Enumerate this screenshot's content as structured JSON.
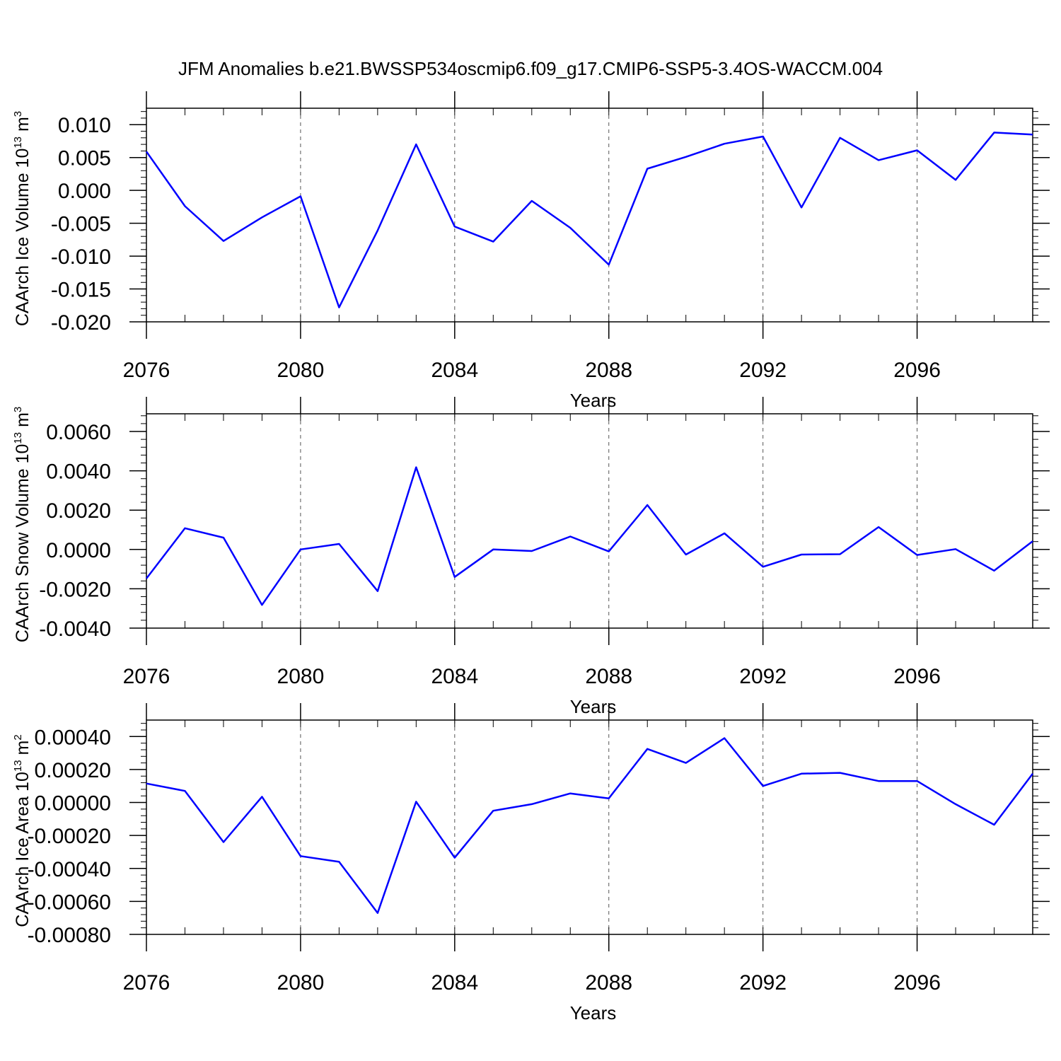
{
  "title": "JFM Anomalies b.e21.BWSSP534oscmip6.f09_g17.CMIP6-SSP5-3.4OS-WACCM.004",
  "colors": {
    "line": "#0000ff",
    "axis": "#000000",
    "grid": "#555555"
  },
  "chart_data": [
    {
      "type": "line",
      "xlabel": "Years",
      "ylabel": "CAArch Ice Volume 10",
      "ylabel_exp": "13",
      "ylabel_unit": " m",
      "ylabel_unit_exp": "3",
      "xlim": [
        2076,
        2099
      ],
      "ylim": [
        -0.02,
        0.0125
      ],
      "xticks": [
        "2076",
        "2080",
        "2084",
        "2088",
        "2092",
        "2096"
      ],
      "yticks": [
        "0.010",
        "0.005",
        "0.000",
        "-0.005",
        "-0.010",
        "-0.015",
        "-0.020"
      ],
      "x": [
        2076,
        2077,
        2078,
        2079,
        2080,
        2081,
        2082,
        2083,
        2084,
        2085,
        2086,
        2087,
        2088,
        2089,
        2090,
        2091,
        2092,
        2093,
        2094,
        2095,
        2096,
        2097,
        2098,
        2099
      ],
      "series": [
        {
          "name": "CAArch Ice Volume",
          "values": [
            0.0059,
            -0.0024,
            -0.0077,
            -0.0041,
            -0.0009,
            -0.0178,
            -0.0061,
            0.007,
            -0.0055,
            -0.0078,
            -0.0016,
            -0.0057,
            -0.0113,
            0.0033,
            0.0051,
            0.0071,
            0.0082,
            -0.0026,
            0.008,
            0.0046,
            0.0061,
            0.0016,
            0.0088,
            0.0085
          ]
        }
      ]
    },
    {
      "type": "line",
      "xlabel": "Years",
      "ylabel": "CAArch Snow Volume 10",
      "ylabel_exp": "13",
      "ylabel_unit": " m",
      "ylabel_unit_exp": "3",
      "xlim": [
        2076,
        2099
      ],
      "ylim": [
        -0.004,
        0.0069
      ],
      "xticks": [
        "2076",
        "2080",
        "2084",
        "2088",
        "2092",
        "2096"
      ],
      "yticks": [
        "0.0060",
        "0.0040",
        "0.0020",
        "0.0000",
        "-0.0020",
        "-0.0040"
      ],
      "x": [
        2076,
        2077,
        2078,
        2079,
        2080,
        2081,
        2082,
        2083,
        2084,
        2085,
        2086,
        2087,
        2088,
        2089,
        2090,
        2091,
        2092,
        2093,
        2094,
        2095,
        2096,
        2097,
        2098,
        2099
      ],
      "series": [
        {
          "name": "CAArch Snow Volume",
          "values": [
            -0.00148,
            0.00108,
            0.0006,
            -0.00282,
            0.0,
            0.00028,
            -0.00212,
            0.00418,
            -0.0014,
            0.0,
            -8e-05,
            0.00066,
            -0.0001,
            0.00226,
            -0.00026,
            0.00082,
            -0.00088,
            -0.00026,
            -0.00024,
            0.00114,
            -0.00028,
            2e-05,
            -0.00108,
            0.00042
          ]
        }
      ]
    },
    {
      "type": "line",
      "xlabel": "Years",
      "ylabel": "CAArch Ice Area 10",
      "ylabel_exp": "13",
      "ylabel_unit": " m",
      "ylabel_unit_exp": "2",
      "xlim": [
        2076,
        2099
      ],
      "ylim": [
        -0.0008,
        0.0005
      ],
      "xticks": [
        "2076",
        "2080",
        "2084",
        "2088",
        "2092",
        "2096"
      ],
      "yticks": [
        "0.00040",
        "0.00020",
        "0.00000",
        "-0.00020",
        "-0.00040",
        "-0.00060",
        "-0.00080"
      ],
      "x": [
        2076,
        2077,
        2078,
        2079,
        2080,
        2081,
        2082,
        2083,
        2084,
        2085,
        2086,
        2087,
        2088,
        2089,
        2090,
        2091,
        2092,
        2093,
        2094,
        2095,
        2096,
        2097,
        2098,
        2099
      ],
      "series": [
        {
          "name": "CAArch Ice Area",
          "values": [
            0.000115,
            7e-05,
            -0.00024,
            3.5e-05,
            -0.000325,
            -0.00036,
            -0.00067,
            5e-06,
            -0.000335,
            -5e-05,
            -1e-05,
            5.5e-05,
            2.5e-05,
            0.000325,
            0.00024,
            0.00039,
            0.0001,
            0.000175,
            0.00018,
            0.00013,
            0.00013,
            -1e-05,
            -0.000135,
            0.000175
          ]
        }
      ]
    }
  ]
}
